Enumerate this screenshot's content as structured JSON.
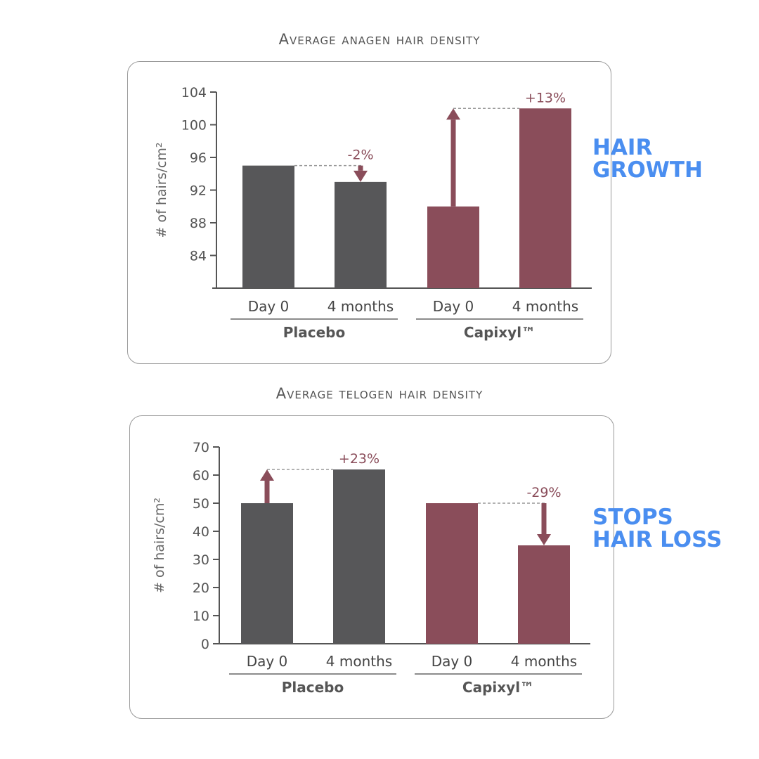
{
  "colors": {
    "placebo": "#575759",
    "capixyl": "#8a4d5a",
    "axis": "#555555",
    "callout": "#4a8ef0"
  },
  "callouts": {
    "top_line1": "HAIR",
    "top_line2": "GROWTH",
    "bottom_line1": "STOPS",
    "bottom_line2": "HAIR LOSS"
  },
  "chart_data": [
    {
      "type": "bar",
      "title": "Average anagen hair density",
      "ylabel": "# of hairs/cm²",
      "ylim": [
        80,
        104
      ],
      "yticks": [
        84,
        88,
        92,
        96,
        100,
        104
      ],
      "categories": [
        "Day 0",
        "4 months",
        "Day 0",
        "4 months"
      ],
      "groups": [
        {
          "name": "Placebo",
          "values": [
            95,
            93
          ]
        },
        {
          "name": "Capixyl™",
          "values": [
            90,
            102
          ]
        }
      ],
      "annotations": [
        {
          "group": "Placebo",
          "label": "-2%",
          "direction": "down"
        },
        {
          "group": "Capixyl™",
          "label": "+13%",
          "direction": "up"
        }
      ]
    },
    {
      "type": "bar",
      "title": "Average telogen hair density",
      "ylabel": "# of hairs/cm²",
      "ylim": [
        0,
        70
      ],
      "yticks": [
        0,
        10,
        20,
        30,
        40,
        50,
        60,
        70
      ],
      "categories": [
        "Day 0",
        "4 months",
        "Day 0",
        "4 months"
      ],
      "groups": [
        {
          "name": "Placebo",
          "values": [
            50,
            62
          ]
        },
        {
          "name": "Capixyl™",
          "values": [
            50,
            35
          ]
        }
      ],
      "annotations": [
        {
          "group": "Placebo",
          "label": "+23%",
          "direction": "up"
        },
        {
          "group": "Capixyl™",
          "label": "-29%",
          "direction": "down"
        }
      ]
    }
  ]
}
